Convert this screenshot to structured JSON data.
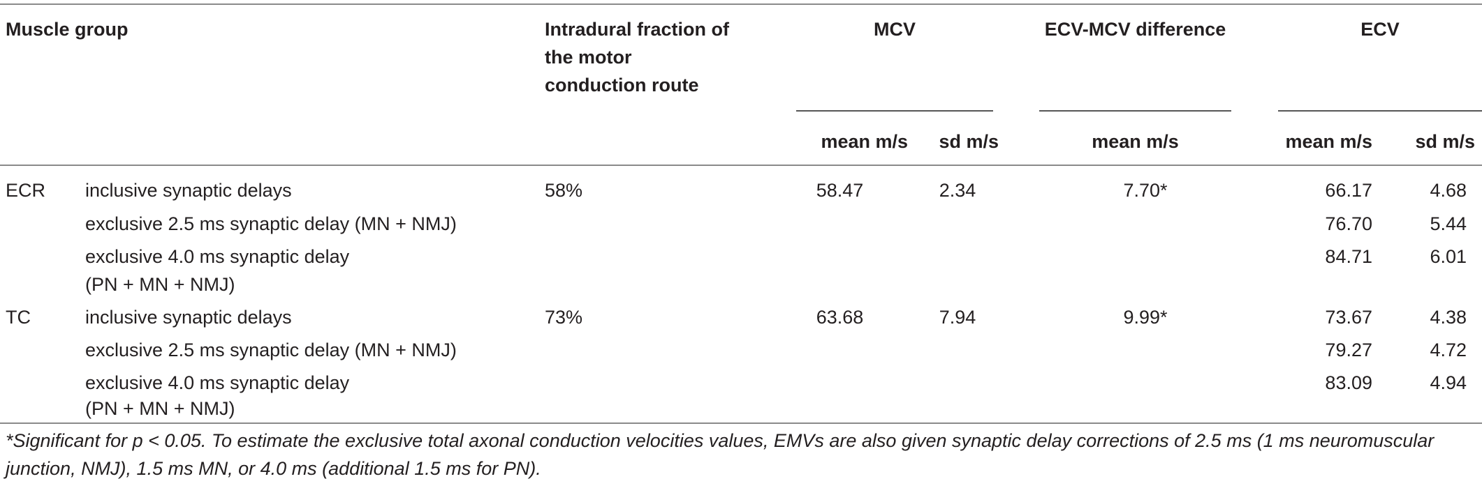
{
  "header": {
    "col_muscle": "Muscle group",
    "col_fraction_line1": "Intradural fraction of",
    "col_fraction_line2": "the motor",
    "col_fraction_line3": "conduction route",
    "col_mcv": "MCV",
    "col_diff": "ECV-MCV difference",
    "col_ecv": "ECV",
    "sub_mcv_mean": "mean m/s",
    "sub_mcv_sd": "sd m/s",
    "sub_diff_mean": "mean m/s",
    "sub_ecv_mean": "mean m/s",
    "sub_ecv_sd": "sd m/s"
  },
  "groups": [
    {
      "muscle": "ECR",
      "fraction": "58%",
      "mcv_mean": "58.47",
      "mcv_sd": "2.34",
      "diff_mean": "7.70*",
      "rows": [
        {
          "label": "inclusive synaptic delays",
          "label2": "",
          "ecv_mean": "66.17",
          "ecv_sd": "4.68"
        },
        {
          "label": "exclusive 2.5 ms synaptic delay (MN + NMJ)",
          "label2": "",
          "ecv_mean": "76.70",
          "ecv_sd": "5.44"
        },
        {
          "label": "exclusive 4.0 ms synaptic delay",
          "label2": "(PN + MN + NMJ)",
          "ecv_mean": "84.71",
          "ecv_sd": "6.01"
        }
      ]
    },
    {
      "muscle": "TC",
      "fraction": "73%",
      "mcv_mean": "63.68",
      "mcv_sd": "7.94",
      "diff_mean": "9.99*",
      "rows": [
        {
          "label": "inclusive synaptic delays",
          "label2": "",
          "ecv_mean": "73.67",
          "ecv_sd": "4.38"
        },
        {
          "label": "exclusive 2.5 ms synaptic delay (MN + NMJ)",
          "label2": "",
          "ecv_mean": "79.27",
          "ecv_sd": "4.72"
        },
        {
          "label": "exclusive 4.0 ms synaptic delay",
          "label2": "(PN + MN + NMJ)",
          "ecv_mean": "83.09",
          "ecv_sd": "4.94"
        }
      ]
    }
  ],
  "footnote": "*Significant for p < 0.05. To estimate the exclusive total axonal conduction velocities values, EMVs are also given synaptic delay corrections of 2.5 ms (1 ms neuromuscular junction, NMJ), 1.5 ms MN, or 4.0 ms (additional 1.5 ms for PN)."
}
